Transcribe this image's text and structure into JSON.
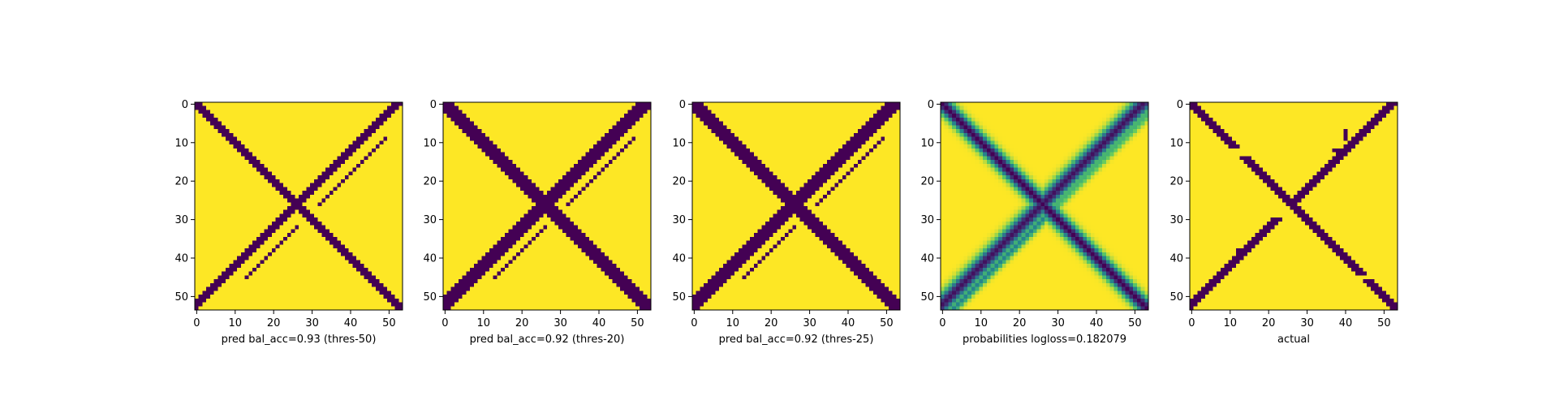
{
  "colors": {
    "low": "#440154",
    "high": "#fde725",
    "viridis": [
      "#440154",
      "#3b528b",
      "#21918c",
      "#5ec962",
      "#fde725"
    ]
  },
  "chart_data": [
    {
      "type": "heatmap",
      "xlabel": "pred bal_acc=0.93 (thres-50)",
      "grid_size": 54,
      "xticks": [
        0,
        10,
        20,
        30,
        40,
        50
      ],
      "yticks": [
        0,
        10,
        20,
        30,
        40,
        50
      ],
      "xlim": [
        0,
        53
      ],
      "ylim": [
        53,
        0
      ],
      "grid": false,
      "mode": "binary",
      "band_main": 1.8,
      "band_anti": 1.4,
      "extra_spurs": true
    },
    {
      "type": "heatmap",
      "xlabel": "pred bal_acc=0.92 (thres-20)",
      "grid_size": 54,
      "xticks": [
        0,
        10,
        20,
        30,
        40,
        50
      ],
      "yticks": [
        0,
        10,
        20,
        30,
        40,
        50
      ],
      "xlim": [
        0,
        53
      ],
      "ylim": [
        53,
        0
      ],
      "grid": false,
      "mode": "binary",
      "band_main": 2.6,
      "band_anti": 2.4,
      "extra_spurs": true
    },
    {
      "type": "heatmap",
      "xlabel": "pred bal_acc=0.92 (thres-25)",
      "grid_size": 54,
      "xticks": [
        0,
        10,
        20,
        30,
        40,
        50
      ],
      "yticks": [
        0,
        10,
        20,
        30,
        40,
        50
      ],
      "xlim": [
        0,
        53
      ],
      "ylim": [
        53,
        0
      ],
      "grid": false,
      "mode": "binary",
      "band_main": 2.3,
      "band_anti": 2.0,
      "extra_spurs": true
    },
    {
      "type": "heatmap",
      "xlabel": "probabilities logloss=0.182079",
      "grid_size": 54,
      "xticks": [
        0,
        10,
        20,
        30,
        40,
        50
      ],
      "yticks": [
        0,
        10,
        20,
        30,
        40,
        50
      ],
      "xlim": [
        0,
        53
      ],
      "ylim": [
        53,
        0
      ],
      "grid": false,
      "mode": "continuous",
      "band_main": 2.5,
      "band_anti": 2.5,
      "extra_spurs": true
    },
    {
      "type": "heatmap",
      "xlabel": "actual",
      "grid_size": 54,
      "xticks": [
        0,
        10,
        20,
        30,
        40,
        50
      ],
      "yticks": [
        0,
        10,
        20,
        30,
        40,
        50
      ],
      "xlim": [
        0,
        53
      ],
      "ylim": [
        53,
        0
      ],
      "grid": false,
      "mode": "actual",
      "band_main": 1.0,
      "band_anti": 1.0,
      "extra_spurs": false
    }
  ]
}
